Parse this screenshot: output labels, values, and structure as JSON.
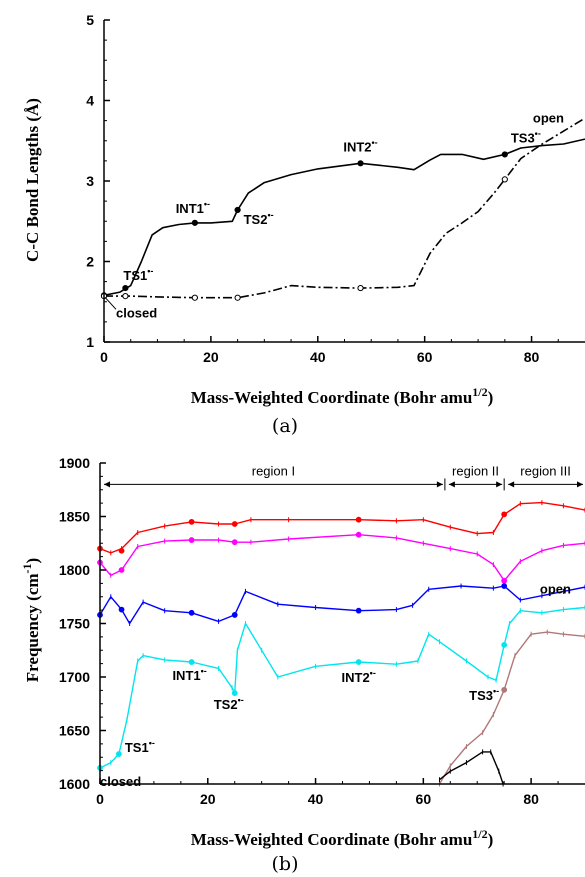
{
  "chart_data": [
    {
      "type": "line",
      "caption": "(a)",
      "xlabel_text": "Mass-Weighted Coordinate (Bohr amu",
      "xlabel_sup": "1/2",
      "xlabel_close": ")",
      "ylabel_text": "C-C Bond Lengths (Å)",
      "xlim": [
        0,
        90
      ],
      "ylim": [
        1,
        5
      ],
      "xticks": [
        0,
        20,
        40,
        60,
        80
      ],
      "yticks": [
        1,
        2,
        3,
        4,
        5
      ],
      "series": [
        {
          "style": "solid",
          "color": "#000000",
          "x": [
            0,
            3,
            5,
            7,
            9,
            11,
            14,
            17,
            20,
            24,
            25,
            27,
            30,
            35,
            40,
            48,
            55,
            58,
            61,
            63,
            67,
            71,
            75,
            78,
            82,
            86,
            90
          ],
          "y": [
            1.58,
            1.62,
            1.7,
            2.0,
            2.33,
            2.42,
            2.46,
            2.48,
            2.48,
            2.5,
            2.64,
            2.85,
            2.98,
            3.08,
            3.15,
            3.22,
            3.17,
            3.14,
            3.26,
            3.33,
            3.33,
            3.27,
            3.33,
            3.41,
            3.44,
            3.46,
            3.52
          ],
          "markers": [
            [
              0,
              1.58
            ],
            [
              4,
              1.67
            ],
            [
              17,
              2.48
            ],
            [
              25,
              2.64
            ],
            [
              48,
              3.22
            ],
            [
              75,
              3.33
            ]
          ]
        },
        {
          "style": "dashdot",
          "color": "#000000",
          "x": [
            0,
            5,
            10,
            17,
            25,
            30,
            35,
            40,
            48,
            55,
            58,
            61,
            64,
            67,
            70,
            73,
            75,
            78,
            82,
            86,
            90
          ],
          "y": [
            1.57,
            1.57,
            1.56,
            1.55,
            1.55,
            1.61,
            1.7,
            1.68,
            1.67,
            1.68,
            1.7,
            2.1,
            2.35,
            2.48,
            2.62,
            2.85,
            3.02,
            3.28,
            3.46,
            3.62,
            3.78
          ],
          "markers": [
            [
              0,
              1.57
            ],
            [
              4,
              1.57
            ],
            [
              17,
              1.55
            ],
            [
              25,
              1.55
            ],
            [
              48,
              1.67
            ],
            [
              75,
              3.02
            ]
          ]
        }
      ],
      "annotations": [
        {
          "text": "TS1",
          "x": 4,
          "y": 1.67
        },
        {
          "text": "closed",
          "x": 0,
          "y": 1.58
        },
        {
          "text": "INT1",
          "x": 17,
          "y": 2.48
        },
        {
          "text": "TS2",
          "x": 25,
          "y": 2.64
        },
        {
          "text": "INT2",
          "x": 48,
          "y": 3.22
        },
        {
          "text": "TS3",
          "x": 75,
          "y": 3.33
        },
        {
          "text": "open",
          "x": 84,
          "y": 3.65
        }
      ],
      "ion_superscript": "•-"
    },
    {
      "type": "line",
      "caption": "(b)",
      "xlabel_text": "Mass-Weighted Coordinate (Bohr amu",
      "xlabel_sup": "1/2",
      "xlabel_close": ")",
      "ylabel_text": "Frequency (cm",
      "ylabel_sup": "-1",
      "ylabel_close": ")",
      "xlim": [
        0,
        90
      ],
      "ylim": [
        1600,
        1900
      ],
      "xticks": [
        0,
        20,
        40,
        60,
        80
      ],
      "yticks": [
        1600,
        1650,
        1700,
        1750,
        1800,
        1850,
        1900
      ],
      "regions": [
        {
          "label": "region I",
          "x0": 0,
          "x1": 64
        },
        {
          "label": "region II",
          "x0": 64,
          "x1": 75
        },
        {
          "label": "region III",
          "x0": 75,
          "x1": 90
        }
      ],
      "series": [
        {
          "color": "#ff0000",
          "x": [
            0,
            2,
            4,
            7,
            12,
            17,
            22,
            25,
            28,
            35,
            48,
            55,
            60,
            65,
            70,
            73,
            75,
            78,
            82,
            86,
            90
          ],
          "y": [
            1820,
            1816,
            1820,
            1835,
            1841,
            1845,
            1843,
            1843,
            1847,
            1847,
            1847,
            1846,
            1847,
            1840,
            1834,
            1835,
            1852,
            1862,
            1863,
            1860,
            1856
          ],
          "markers": [
            [
              0,
              1820
            ],
            [
              4,
              1818
            ],
            [
              17,
              1845
            ],
            [
              25,
              1843
            ],
            [
              48,
              1847
            ],
            [
              75,
              1852
            ]
          ]
        },
        {
          "color": "#ff00ff",
          "x": [
            0,
            2,
            4,
            7,
            12,
            17,
            22,
            25,
            28,
            35,
            48,
            55,
            60,
            65,
            70,
            73,
            75,
            78,
            82,
            86,
            90
          ],
          "y": [
            1807,
            1795,
            1800,
            1822,
            1827,
            1828,
            1828,
            1826,
            1826,
            1829,
            1833,
            1830,
            1825,
            1820,
            1815,
            1805,
            1790,
            1808,
            1818,
            1823,
            1825
          ],
          "markers": [
            [
              0,
              1807
            ],
            [
              4,
              1800
            ],
            [
              17,
              1828
            ],
            [
              25,
              1826
            ],
            [
              48,
              1833
            ],
            [
              75,
              1790
            ]
          ]
        },
        {
          "color": "#0000ff",
          "x": [
            0,
            2,
            4,
            5.5,
            8,
            12,
            17,
            22,
            25,
            27,
            33,
            40,
            48,
            55,
            58,
            61,
            67,
            73,
            75,
            78,
            82,
            86,
            90
          ],
          "y": [
            1758,
            1775,
            1763,
            1750,
            1770,
            1762,
            1760,
            1752,
            1758,
            1780,
            1768,
            1765,
            1762,
            1763,
            1767,
            1782,
            1785,
            1783,
            1785,
            1772,
            1776,
            1780,
            1784
          ],
          "markers": [
            [
              0,
              1758
            ],
            [
              4,
              1763
            ],
            [
              17,
              1760
            ],
            [
              25,
              1758
            ],
            [
              48,
              1762
            ],
            [
              75,
              1785
            ]
          ]
        },
        {
          "color": "#00e5ee",
          "x": [
            0,
            2,
            3.5,
            5,
            7,
            8,
            12,
            17,
            22,
            24.5,
            25,
            25.5,
            27,
            30,
            33,
            40,
            48,
            55,
            59,
            61,
            63,
            68,
            72,
            73.5,
            75,
            76,
            78,
            82,
            86,
            90
          ],
          "y": [
            1615,
            1620,
            1628,
            1660,
            1715,
            1720,
            1716,
            1714,
            1708,
            1690,
            1685,
            1725,
            1750,
            1725,
            1700,
            1710,
            1714,
            1712,
            1715,
            1740,
            1733,
            1715,
            1700,
            1697,
            1730,
            1750,
            1762,
            1760,
            1763,
            1765
          ],
          "markers": [
            [
              0,
              1615
            ],
            [
              3.5,
              1628
            ],
            [
              17,
              1714
            ],
            [
              25,
              1685
            ],
            [
              48,
              1714
            ],
            [
              75,
              1730
            ]
          ]
        },
        {
          "color": "#b07878",
          "x": [
            63,
            65,
            68,
            71,
            73,
            75,
            77,
            80,
            83,
            86,
            90
          ],
          "y": [
            1600,
            1617,
            1635,
            1648,
            1665,
            1688,
            1720,
            1740,
            1742,
            1740,
            1738
          ],
          "markers": [
            [
              75,
              1688
            ]
          ]
        },
        {
          "color": "#000000",
          "x": [
            63,
            65,
            68,
            71,
            72.5,
            74,
            74.8
          ],
          "y": [
            1604,
            1612,
            1620,
            1630,
            1630,
            1612,
            1600
          ],
          "markers": []
        }
      ],
      "annotations": [
        {
          "text": "TS1",
          "x": 3.5,
          "y": 1628
        },
        {
          "text": "closed",
          "x": 0,
          "y": 1615
        },
        {
          "text": "INT1",
          "x": 17,
          "y": 1714
        },
        {
          "text": "TS2",
          "x": 25,
          "y": 1685
        },
        {
          "text": "INT2",
          "x": 48,
          "y": 1714
        },
        {
          "text": "TS3",
          "x": 75,
          "y": 1697
        },
        {
          "text": "open",
          "x": 86,
          "y": 1763
        }
      ],
      "ion_superscript": "•-"
    }
  ]
}
